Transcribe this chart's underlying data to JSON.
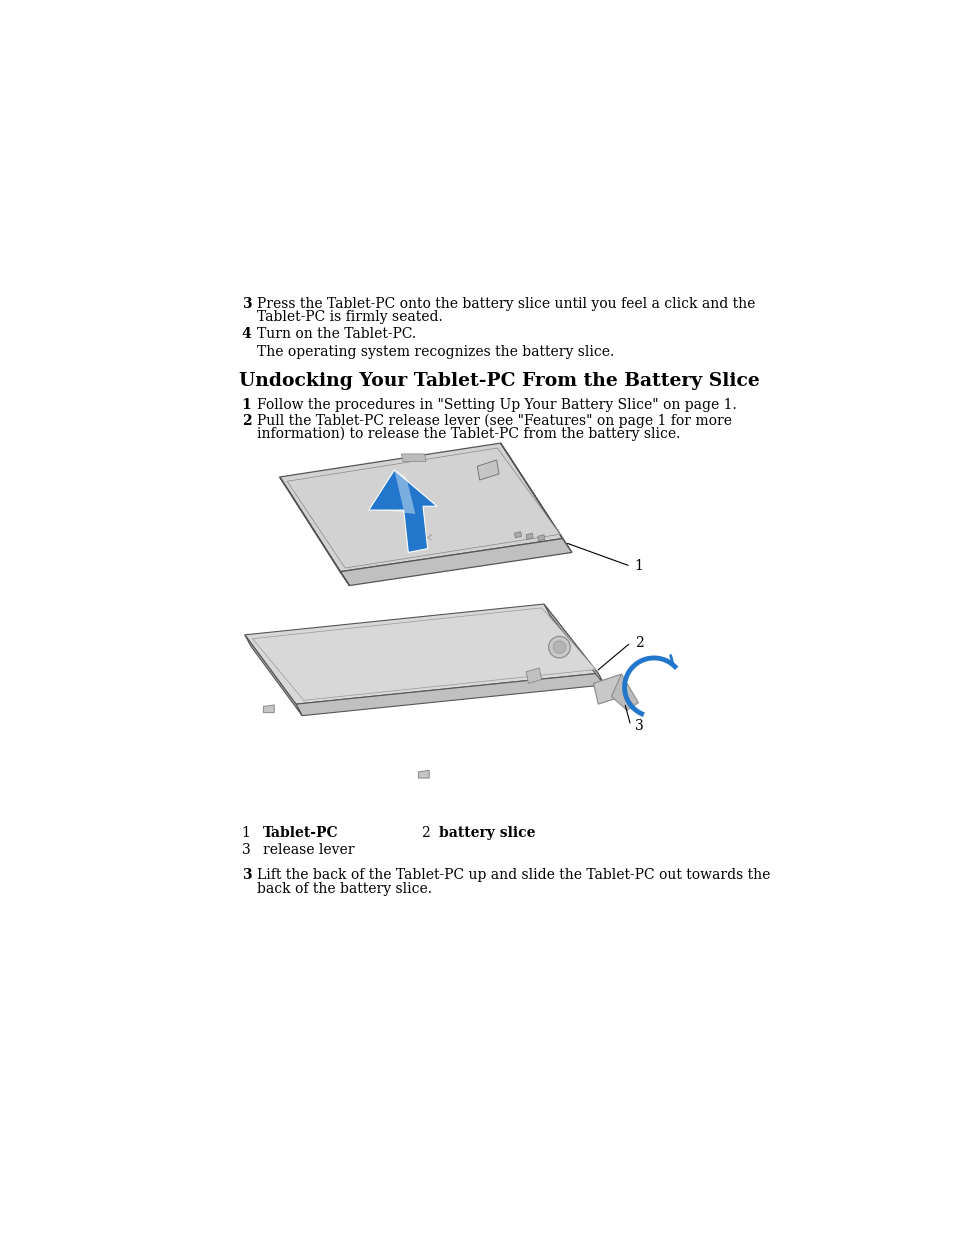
{
  "bg_color": "#ffffff",
  "title": "Undocking Your Tablet-PC From the Battery Slice",
  "step3_text_l1": "Press the Tablet-PC onto the battery slice until you feel a click and the",
  "step3_text_l2": "Tablet-PC is firmly seated.",
  "step4_text": "Turn on the Tablet-PC.",
  "step4_sub": "The operating system recognizes the battery slice.",
  "undock_step1": "Follow the procedures in \"Setting Up Your Battery Slice\" on page 1.",
  "undock_step2_line1": "Pull the Tablet-PC release lever (see \"Features\" on page 1 for more",
  "undock_step2_line2": "information) to release the Tablet-PC from the battery slice.",
  "label1": "Tablet-PC",
  "label2": "battery slice",
  "label3": "release lever",
  "undock_step3_line1": "Lift the back of the Tablet-PC up and slide the Tablet-PC out towards the",
  "undock_step3_line2": "back of the battery slice.",
  "font_family": "DejaVu Serif",
  "text_color": "#000000",
  "blue_color": "#2277CC",
  "blue_dark": "#1055AA",
  "gray_top": "#d0d0d0",
  "gray_side": "#aaaaaa",
  "gray_front": "#b8b8b8",
  "gray_slice_top": "#d8d8d8",
  "gray_slice_side": "#b0b0b0",
  "line_color": "#555555"
}
